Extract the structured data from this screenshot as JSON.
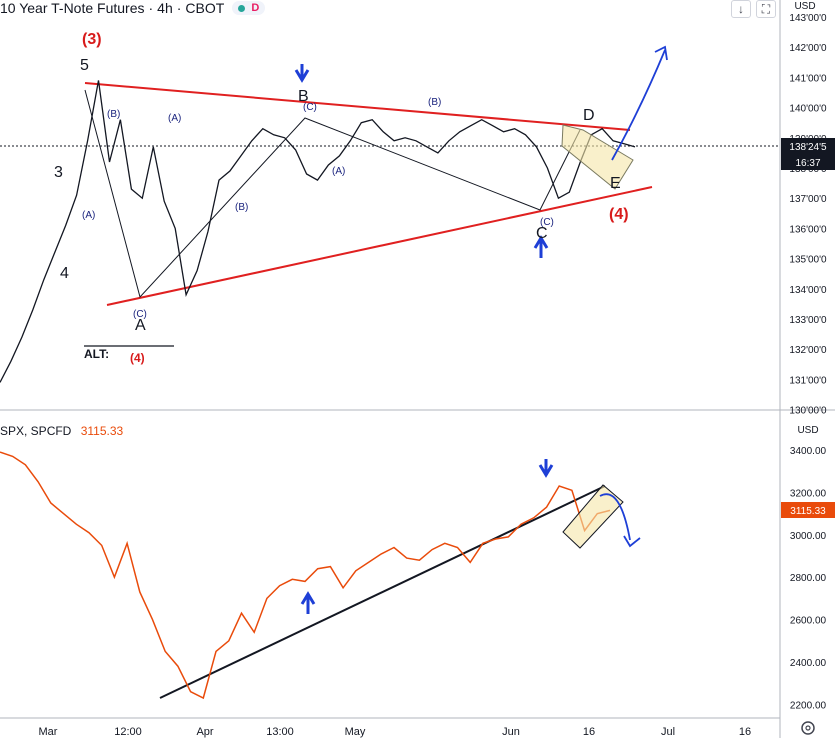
{
  "header": {
    "symbol": "10 Year T-Note Futures",
    "interval": "4h",
    "exchange": "CBOT",
    "pill_letter": "D",
    "scroll_icon": "down-arrow-icon",
    "fullscreen_icon": "fullscreen-icon"
  },
  "lower_header": {
    "symbol": "SPX, SPCFD",
    "value": "3115.33"
  },
  "colors": {
    "price": "#131722",
    "spx": "#e94b0b",
    "trend": "#e02020",
    "wave_label": "#1a237e",
    "arrow": "#1e3fd6",
    "box": "#f5e6a8"
  },
  "chart_data": [
    {
      "type": "line",
      "name": "upper",
      "currency": "USD",
      "y_ticks": [
        "143'00'0",
        "142'00'0",
        "141'00'0",
        "140'00'0",
        "139'00'0",
        "138'00'0",
        "137'00'0",
        "136'00'0",
        "135'00'0",
        "134'00'0",
        "133'00'0",
        "132'00'0",
        "131'00'0",
        "130'00'0"
      ],
      "ylim": [
        130,
        143.3
      ],
      "last_price_label": "138'24'5",
      "countdown_label": "16:37",
      "series": [
        {
          "values": [
            130.9,
            131.6,
            132.4,
            133.3,
            134.3,
            135.2,
            136.1,
            137.1,
            138.9,
            140.9,
            138.2,
            139.6,
            137.3,
            137.0,
            138.7,
            136.9,
            136.0,
            133.8,
            134.6,
            135.9,
            137.6,
            137.9,
            138.4,
            138.9,
            139.3,
            139.1,
            139.0,
            138.6,
            137.8,
            137.6,
            138.1,
            138.4,
            138.9,
            139.5,
            139.6,
            139.2,
            138.9,
            139.0,
            138.9,
            138.7,
            138.5,
            138.9,
            139.2,
            139.4,
            139.6,
            139.4,
            139.2,
            139.3,
            139.1,
            138.7,
            138.0,
            137.0,
            137.2,
            138.2,
            139.1,
            139.3,
            138.9,
            138.8,
            138.7
          ]
        }
      ],
      "wave_labels": [
        "(3)",
        "5",
        "3",
        "4",
        "(B)",
        "(A)",
        "(A)",
        "(C)",
        "A",
        "B",
        "(C)",
        "(B)",
        "(A)",
        "(B)",
        "(C)",
        "C",
        "D",
        "E",
        "(4)",
        "ALT:",
        "(4)"
      ]
    },
    {
      "type": "line",
      "name": "SPX",
      "currency": "USD",
      "y_ticks": [
        "3400.00",
        "3200.00",
        "3000.00",
        "2800.00",
        "2600.00",
        "2400.00",
        "2200.00"
      ],
      "ylim": [
        2180,
        3450
      ],
      "last_price_label": "3115.33",
      "series": [
        {
          "name": "SPX",
          "values": [
            3390,
            3370,
            3330,
            3250,
            3150,
            3100,
            3050,
            3010,
            2950,
            2800,
            2960,
            2730,
            2600,
            2450,
            2380,
            2260,
            2230,
            2450,
            2500,
            2630,
            2540,
            2700,
            2760,
            2790,
            2780,
            2840,
            2850,
            2750,
            2830,
            2870,
            2910,
            2940,
            2890,
            2880,
            2930,
            2960,
            2940,
            2870,
            2960,
            2980,
            2990,
            3050,
            3080,
            3130,
            3230,
            3210,
            3020,
            3100,
            3115
          ]
        }
      ]
    }
  ],
  "x_ticks": [
    "Mar",
    "12:00",
    "Apr",
    "13:00",
    "May",
    "Jun",
    "16",
    "Jul",
    "16"
  ],
  "settings_icon": "settings-gear-icon"
}
